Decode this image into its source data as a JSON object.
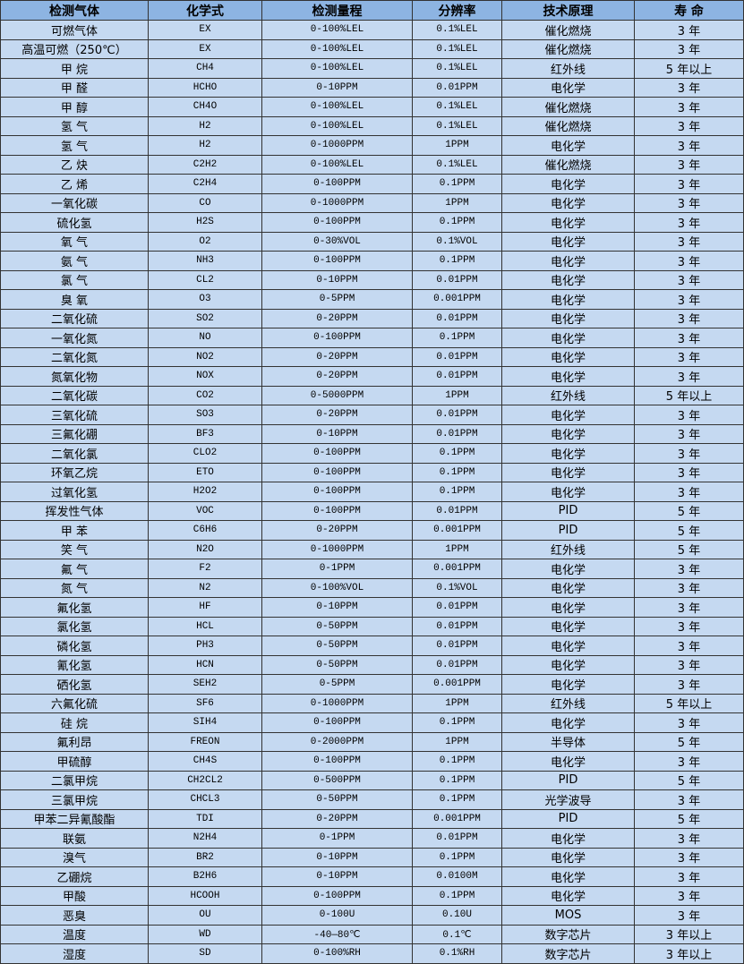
{
  "table": {
    "headers": [
      "检测气体",
      "化学式",
      "检测量程",
      "分辨率",
      "技术原理",
      "寿 命"
    ],
    "rows": [
      [
        "可燃气体",
        "EX",
        "0-100%LEL",
        "0.1%LEL",
        "催化燃烧",
        "3 年"
      ],
      [
        "高温可燃（250℃）",
        "EX",
        "0-100%LEL",
        "0.1%LEL",
        "催化燃烧",
        "3 年"
      ],
      [
        "甲 烷",
        "CH4",
        "0-100%LEL",
        "0.1%LEL",
        "红外线",
        "5 年以上"
      ],
      [
        "甲 醛",
        "HCHO",
        "0-10PPM",
        "0.01PPM",
        "电化学",
        "3 年"
      ],
      [
        "甲 醇",
        "CH4O",
        "0-100%LEL",
        "0.1%LEL",
        "催化燃烧",
        "3 年"
      ],
      [
        "氢 气",
        "H2",
        "0-100%LEL",
        "0.1%LEL",
        "催化燃烧",
        "3 年"
      ],
      [
        "氢 气",
        "H2",
        "0-1000PPM",
        "1PPM",
        "电化学",
        "3 年"
      ],
      [
        "乙 炔",
        "C2H2",
        "0-100%LEL",
        "0.1%LEL",
        "催化燃烧",
        "3 年"
      ],
      [
        "乙 烯",
        "C2H4",
        "0-100PPM",
        "0.1PPM",
        "电化学",
        "3 年"
      ],
      [
        "一氧化碳",
        "CO",
        "0-1000PPM",
        "1PPM",
        "电化学",
        "3 年"
      ],
      [
        "硫化氢",
        "H2S",
        "0-100PPM",
        "0.1PPM",
        "电化学",
        "3 年"
      ],
      [
        "氧 气",
        "O2",
        "0-30%VOL",
        "0.1%VOL",
        "电化学",
        "3 年"
      ],
      [
        "氨 气",
        "NH3",
        "0-100PPM",
        "0.1PPM",
        "电化学",
        "3 年"
      ],
      [
        "氯 气",
        "CL2",
        "0-10PPM",
        "0.01PPM",
        "电化学",
        "3 年"
      ],
      [
        "臭 氧",
        "O3",
        "0-5PPM",
        "0.001PPM",
        "电化学",
        "3 年"
      ],
      [
        "二氧化硫",
        "SO2",
        "0-20PPM",
        "0.01PPM",
        "电化学",
        "3 年"
      ],
      [
        "一氧化氮",
        "NO",
        "0-100PPM",
        "0.1PPM",
        "电化学",
        "3 年"
      ],
      [
        "二氧化氮",
        "NO2",
        "0-20PPM",
        "0.01PPM",
        "电化学",
        "3 年"
      ],
      [
        "氮氧化物",
        "NOX",
        "0-20PPM",
        "0.01PPM",
        "电化学",
        "3 年"
      ],
      [
        "二氧化碳",
        "CO2",
        "0-5000PPM",
        "1PPM",
        "红外线",
        "5 年以上"
      ],
      [
        "三氧化硫",
        "SO3",
        "0-20PPM",
        "0.01PPM",
        "电化学",
        "3 年"
      ],
      [
        "三氟化硼",
        "BF3",
        "0-10PPM",
        "0.01PPM",
        "电化学",
        "3 年"
      ],
      [
        "二氧化氯",
        "CLO2",
        "0-100PPM",
        "0.1PPM",
        "电化学",
        "3 年"
      ],
      [
        "环氧乙烷",
        "ETO",
        "0-100PPM",
        "0.1PPM",
        "电化学",
        "3 年"
      ],
      [
        "过氧化氢",
        "H2O2",
        "0-100PPM",
        "0.1PPM",
        "电化学",
        "3 年"
      ],
      [
        "挥发性气体",
        "VOC",
        "0-100PPM",
        "0.01PPM",
        "PID",
        "5 年"
      ],
      [
        "甲 苯",
        "C6H6",
        "0-20PPM",
        "0.001PPM",
        "PID",
        "5 年"
      ],
      [
        "笑 气",
        "N2O",
        "0-1000PPM",
        "1PPM",
        "红外线",
        "5 年"
      ],
      [
        "氟 气",
        "F2",
        "0-1PPM",
        "0.001PPM",
        "电化学",
        "3 年"
      ],
      [
        "氮 气",
        "N2",
        "0-100%VOL",
        "0.1%VOL",
        "电化学",
        "3 年"
      ],
      [
        "氟化氢",
        "HF",
        "0-10PPM",
        "0.01PPM",
        "电化学",
        "3 年"
      ],
      [
        "氯化氢",
        "HCL",
        "0-50PPM",
        "0.01PPM",
        "电化学",
        "3 年"
      ],
      [
        "磷化氢",
        "PH3",
        "0-50PPM",
        "0.01PPM",
        "电化学",
        "3 年"
      ],
      [
        "氰化氢",
        "HCN",
        "0-50PPM",
        "0.01PPM",
        "电化学",
        "3 年"
      ],
      [
        "硒化氢",
        "SEH2",
        "0-5PPM",
        "0.001PPM",
        "电化学",
        "3 年"
      ],
      [
        "六氟化硫",
        "SF6",
        "0-1000PPM",
        "1PPM",
        "红外线",
        "5 年以上"
      ],
      [
        "硅 烷",
        "SIH4",
        "0-100PPM",
        "0.1PPM",
        "电化学",
        "3 年"
      ],
      [
        "氟利昂",
        "FREON",
        "0-2000PPM",
        "1PPM",
        "半导体",
        "5 年"
      ],
      [
        "甲硫醇",
        "CH4S",
        "0-100PPM",
        "0.1PPM",
        "电化学",
        "3 年"
      ],
      [
        "二氯甲烷",
        "CH2CL2",
        "0-500PPM",
        "0.1PPM",
        "PID",
        "5 年"
      ],
      [
        "三氯甲烷",
        "CHCL3",
        "0-50PPM",
        "0.1PPM",
        "光学波导",
        "3 年"
      ],
      [
        "甲苯二异氰酸酯",
        "TDI",
        "0-20PPM",
        "0.001PPM",
        "PID",
        "5 年"
      ],
      [
        "联氨",
        "N2H4",
        "0-1PPM",
        "0.01PPM",
        "电化学",
        "3 年"
      ],
      [
        "溴气",
        "BR2",
        "0-10PPM",
        "0.1PPM",
        "电化学",
        "3 年"
      ],
      [
        "乙硼烷",
        "B2H6",
        "0-10PPM",
        "0.0100M",
        "电化学",
        "3 年"
      ],
      [
        "甲酸",
        "HCOOH",
        "0-100PPM",
        "0.1PPM",
        "电化学",
        "3 年"
      ],
      [
        "恶臭",
        "OU",
        "0-100U",
        "0.10U",
        "MOS",
        "3 年"
      ],
      [
        "温度",
        "WD",
        "-40—80℃",
        "0.1℃",
        "数字芯片",
        "3 年以上"
      ],
      [
        "湿度",
        "SD",
        "0-100%RH",
        "0.1%RH",
        "数字芯片",
        "3 年以上"
      ]
    ]
  },
  "colors": {
    "header_bg": "#8db4e2",
    "row_bg": "#c5d9f1",
    "border": "#333333"
  }
}
